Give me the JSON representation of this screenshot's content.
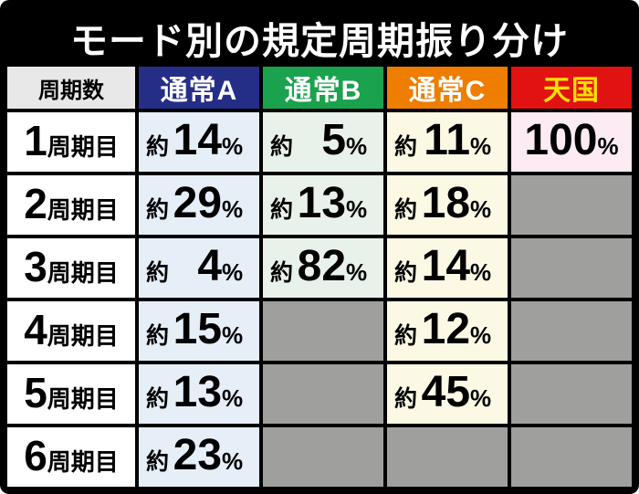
{
  "title": "モード別の規定周期振り分け",
  "table": {
    "corner_label": "周期数",
    "empty_cell_bg": "#9fa09e",
    "columns": [
      {
        "label": "通常A",
        "header_bg": "#252e87",
        "header_fg": "#ffffff",
        "cell_bg": "#e6eff8"
      },
      {
        "label": "通常B",
        "header_bg": "#1ba24e",
        "header_fg": "#ffffff",
        "cell_bg": "#e9f2ea"
      },
      {
        "label": "通常C",
        "header_bg": "#ee7d00",
        "header_fg": "#ffffff",
        "cell_bg": "#fbf9e4"
      },
      {
        "label": "天国",
        "header_bg": "#e01212",
        "header_fg": "#ffe000",
        "cell_bg": "#fcebf2"
      }
    ],
    "rows": [
      {
        "cycle_number": "1",
        "cycle_suffix": "周期目",
        "cells": [
          {
            "prefix": "約",
            "value": "14",
            "unit": "%"
          },
          {
            "prefix": "約",
            "value": "5",
            "unit": "%"
          },
          {
            "prefix": "約",
            "value": "11",
            "unit": "%"
          },
          {
            "prefix": "",
            "value": "100",
            "unit": "%"
          }
        ]
      },
      {
        "cycle_number": "2",
        "cycle_suffix": "周期目",
        "cells": [
          {
            "prefix": "約",
            "value": "29",
            "unit": "%"
          },
          {
            "prefix": "約",
            "value": "13",
            "unit": "%"
          },
          {
            "prefix": "約",
            "value": "18",
            "unit": "%"
          },
          null
        ]
      },
      {
        "cycle_number": "3",
        "cycle_suffix": "周期目",
        "cells": [
          {
            "prefix": "約",
            "value": "4",
            "unit": "%"
          },
          {
            "prefix": "約",
            "value": "82",
            "unit": "%"
          },
          {
            "prefix": "約",
            "value": "14",
            "unit": "%"
          },
          null
        ]
      },
      {
        "cycle_number": "4",
        "cycle_suffix": "周期目",
        "cells": [
          {
            "prefix": "約",
            "value": "15",
            "unit": "%"
          },
          null,
          {
            "prefix": "約",
            "value": "12",
            "unit": "%"
          },
          null
        ]
      },
      {
        "cycle_number": "5",
        "cycle_suffix": "周期目",
        "cells": [
          {
            "prefix": "約",
            "value": "13",
            "unit": "%"
          },
          null,
          {
            "prefix": "約",
            "value": "45",
            "unit": "%"
          },
          null
        ]
      },
      {
        "cycle_number": "6",
        "cycle_suffix": "周期目",
        "cells": [
          {
            "prefix": "約",
            "value": "23",
            "unit": "%"
          },
          null,
          null,
          null
        ]
      }
    ]
  },
  "chart_data": {
    "type": "table",
    "title": "モード別の規定周期振り分け",
    "row_header": "周期数",
    "columns": [
      "通常A",
      "通常B",
      "通常C",
      "天国"
    ],
    "rows": [
      "1周期目",
      "2周期目",
      "3周期目",
      "4周期目",
      "5周期目",
      "6周期目"
    ],
    "values_percent": [
      [
        14,
        5,
        11,
        100
      ],
      [
        29,
        13,
        18,
        null
      ],
      [
        4,
        82,
        14,
        null
      ],
      [
        15,
        null,
        12,
        null
      ],
      [
        13,
        null,
        45,
        null
      ],
      [
        23,
        null,
        null,
        null
      ]
    ],
    "value_prefix": "約"
  }
}
